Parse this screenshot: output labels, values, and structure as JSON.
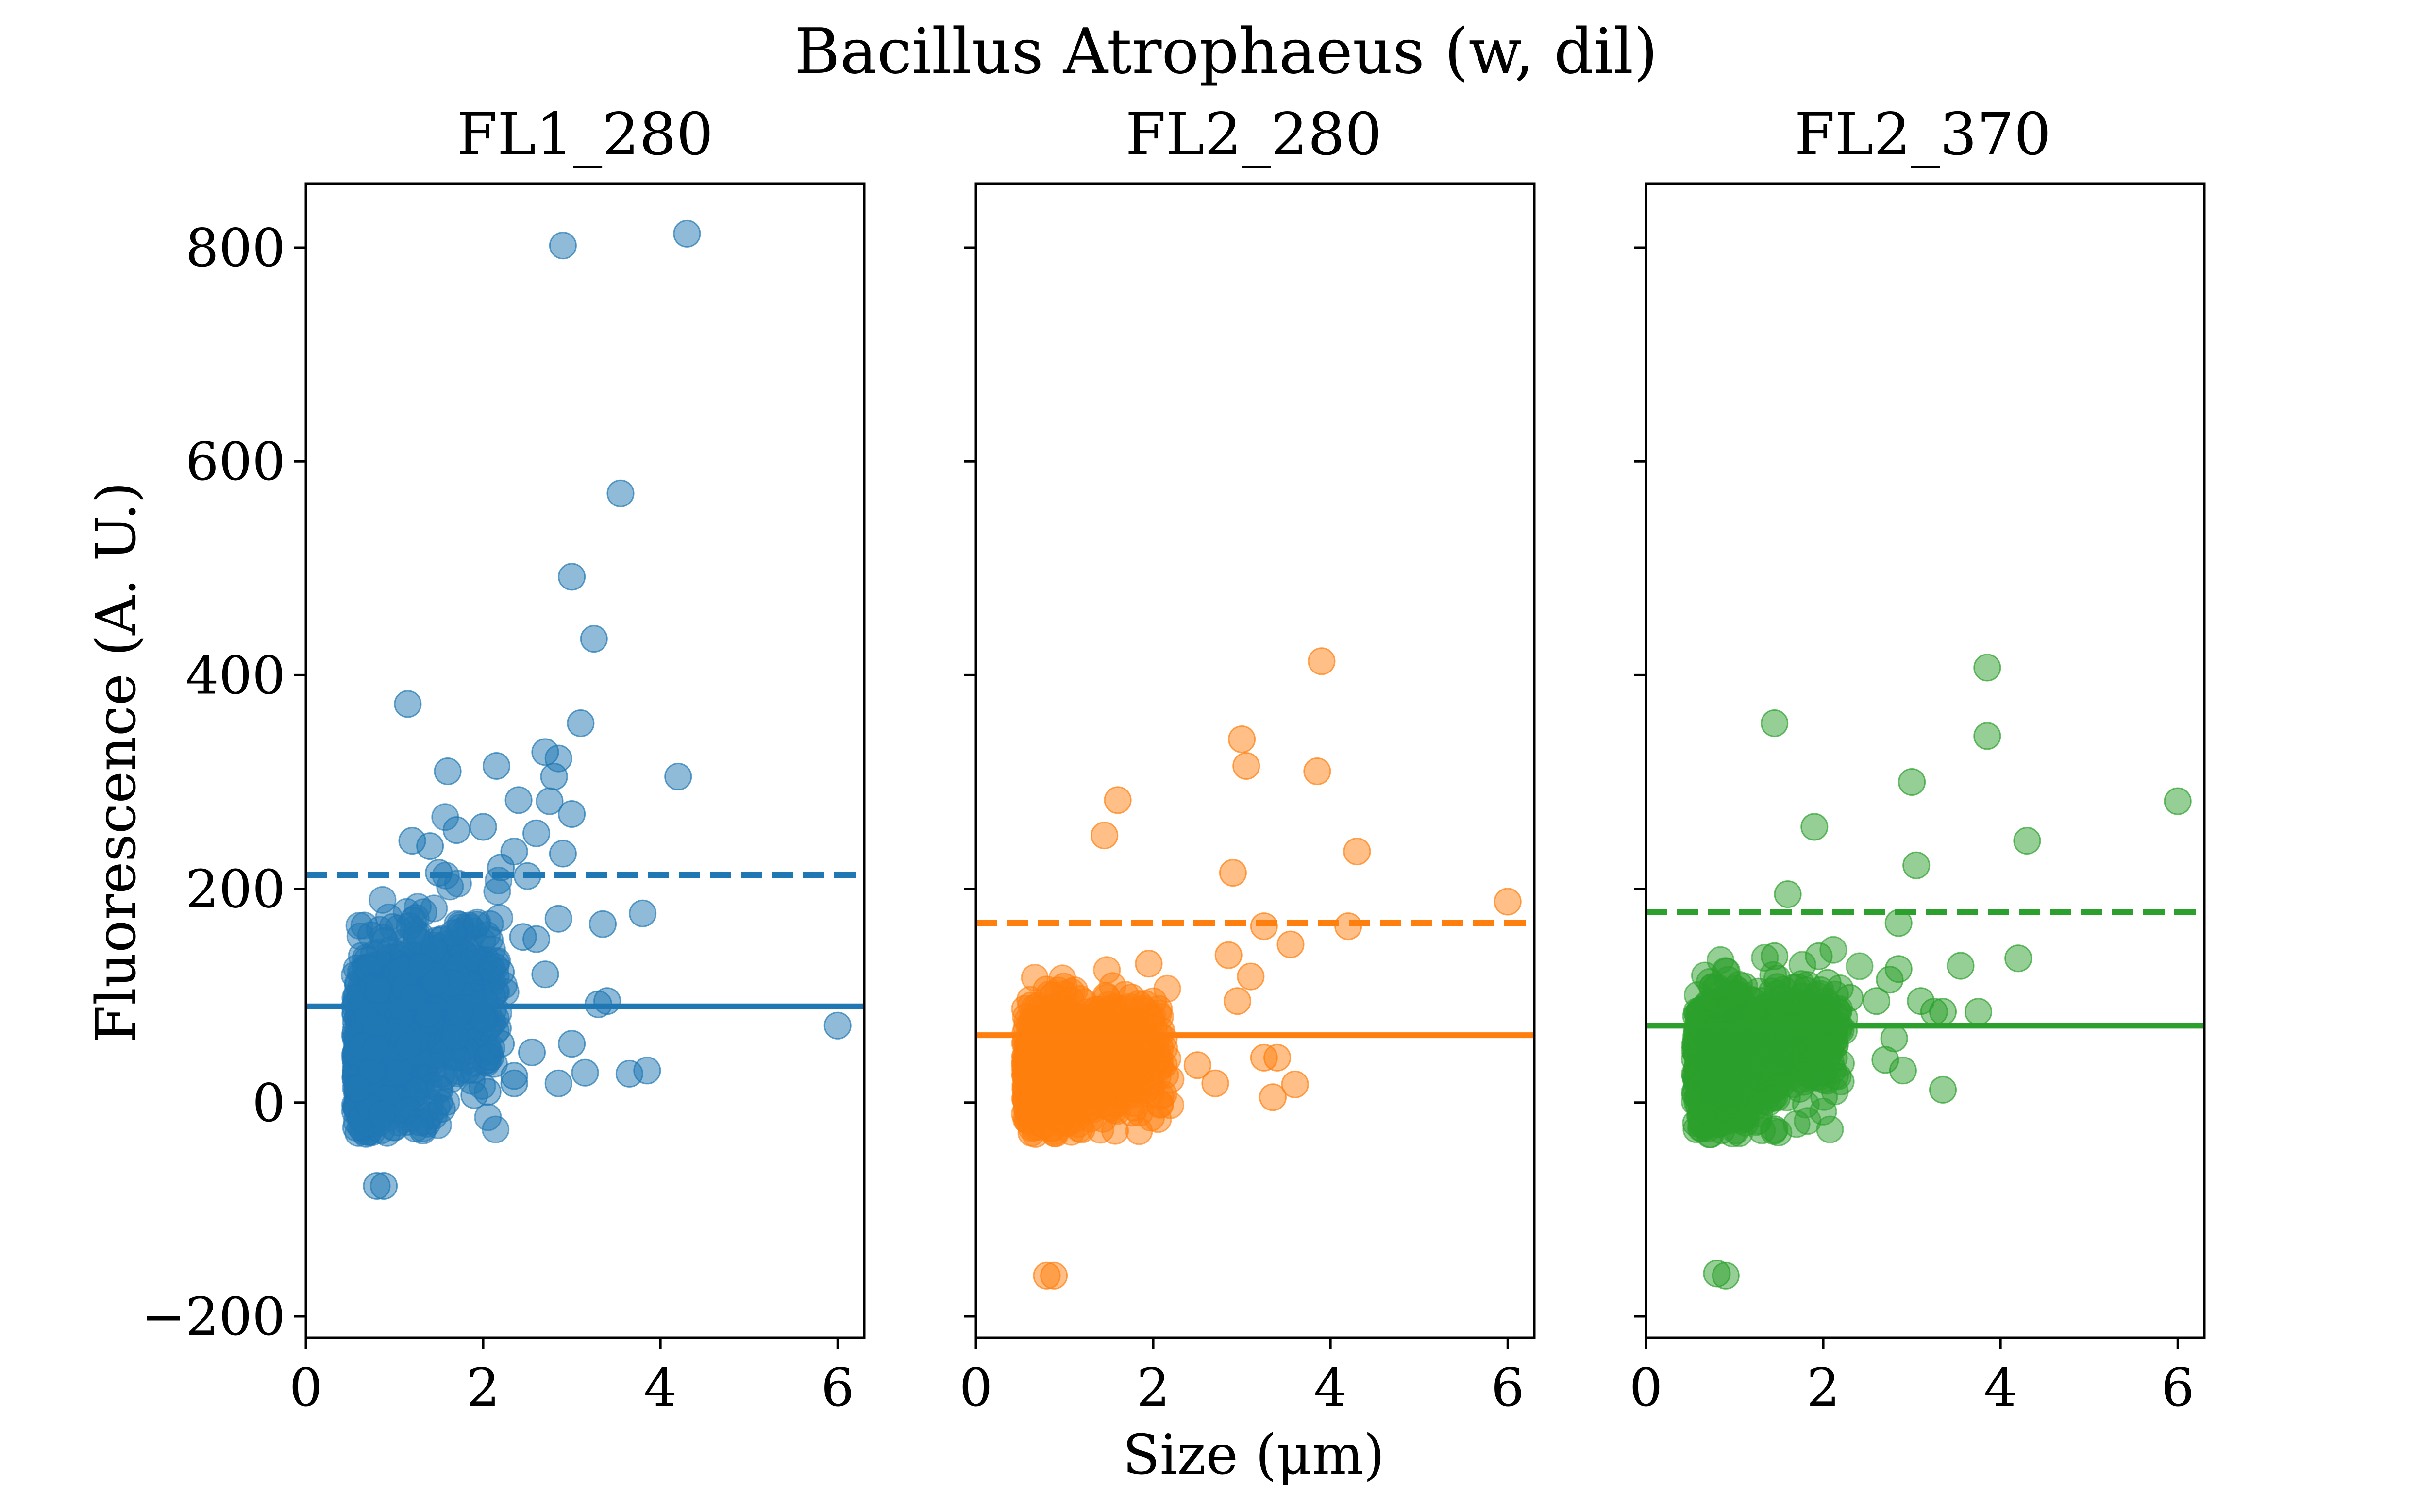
{
  "chart_data": {
    "type": "scatter",
    "title": "Bacillus Atrophaeus (w, dil)",
    "xlabel": "Size (μm)",
    "ylabel": "Fluorescence (A. U.)",
    "xlim": [
      0,
      6.3
    ],
    "ylim": [
      -220,
      860
    ],
    "x_ticks": [
      0,
      2,
      4,
      6
    ],
    "y_ticks": [
      -200,
      0,
      200,
      400,
      600,
      800
    ],
    "y_tick_labels": [
      "−200",
      "0",
      "200",
      "400",
      "600",
      "800"
    ],
    "grid": false,
    "legend": "none",
    "sharey": true,
    "panels": [
      {
        "title": "FL1_280",
        "color": "#1f77b4",
        "mean": 90,
        "threshold": 213,
        "outliers": [
          [
            2.9,
            802
          ],
          [
            4.3,
            813
          ],
          [
            3.55,
            570
          ],
          [
            3.0,
            492
          ],
          [
            3.25,
            434
          ],
          [
            1.15,
            373
          ],
          [
            3.1,
            355
          ],
          [
            2.7,
            328
          ],
          [
            2.85,
            322
          ],
          [
            1.6,
            310
          ],
          [
            2.15,
            315
          ],
          [
            2.8,
            305
          ],
          [
            4.2,
            305
          ],
          [
            2.4,
            283
          ],
          [
            2.75,
            282
          ],
          [
            3.0,
            270
          ],
          [
            2.6,
            252
          ],
          [
            1.7,
            255
          ],
          [
            2.0,
            258
          ],
          [
            1.2,
            245
          ],
          [
            1.4,
            240
          ],
          [
            2.35,
            235
          ],
          [
            2.9,
            233
          ],
          [
            2.2,
            220
          ],
          [
            1.5,
            215
          ],
          [
            2.5,
            212
          ],
          [
            2.85,
            172
          ],
          [
            3.8,
            177
          ],
          [
            3.35,
            167
          ],
          [
            2.45,
            155
          ],
          [
            2.6,
            153
          ],
          [
            2.2,
            122
          ],
          [
            2.7,
            120
          ],
          [
            3.3,
            92
          ],
          [
            3.4,
            95
          ],
          [
            6.0,
            72
          ],
          [
            3.0,
            55
          ],
          [
            2.55,
            47
          ],
          [
            2.2,
            55
          ],
          [
            2.35,
            18
          ],
          [
            2.85,
            18
          ],
          [
            3.15,
            28
          ],
          [
            3.65,
            27
          ],
          [
            3.85,
            30
          ],
          [
            2.05,
            10
          ],
          [
            1.9,
            7
          ],
          [
            2.35,
            25
          ],
          [
            0.8,
            -78
          ],
          [
            0.88,
            -78
          ]
        ]
      },
      {
        "title": "FL2_280",
        "color": "#ff7f0e",
        "mean": 63,
        "threshold": 168,
        "outliers": [
          [
            3.9,
            413
          ],
          [
            3.0,
            340
          ],
          [
            3.05,
            315
          ],
          [
            3.85,
            310
          ],
          [
            1.6,
            283
          ],
          [
            1.45,
            250
          ],
          [
            4.3,
            235
          ],
          [
            2.9,
            215
          ],
          [
            6.0,
            188
          ],
          [
            3.25,
            165
          ],
          [
            4.2,
            165
          ],
          [
            3.55,
            148
          ],
          [
            2.85,
            138
          ],
          [
            1.95,
            130
          ],
          [
            3.1,
            118
          ],
          [
            2.95,
            95
          ],
          [
            3.25,
            42
          ],
          [
            3.4,
            42
          ],
          [
            3.6,
            17
          ],
          [
            3.35,
            5
          ],
          [
            2.7,
            18
          ],
          [
            2.5,
            35
          ],
          [
            0.8,
            -162
          ],
          [
            0.88,
            -162
          ]
        ]
      },
      {
        "title": "FL2_370",
        "color": "#2ca02c",
        "mean": 72,
        "threshold": 178,
        "outliers": [
          [
            3.85,
            407
          ],
          [
            1.45,
            355
          ],
          [
            3.85,
            343
          ],
          [
            3.0,
            300
          ],
          [
            6.0,
            282
          ],
          [
            1.9,
            258
          ],
          [
            4.3,
            245
          ],
          [
            3.05,
            222
          ],
          [
            1.6,
            195
          ],
          [
            1.45,
            137
          ],
          [
            1.95,
            137
          ],
          [
            3.55,
            128
          ],
          [
            4.2,
            135
          ],
          [
            2.85,
            168
          ],
          [
            2.85,
            125
          ],
          [
            1.8,
            105
          ],
          [
            2.05,
            112
          ],
          [
            2.3,
            98
          ],
          [
            2.6,
            95
          ],
          [
            2.75,
            115
          ],
          [
            3.1,
            95
          ],
          [
            3.25,
            85
          ],
          [
            3.35,
            85
          ],
          [
            3.75,
            85
          ],
          [
            0.75,
            108
          ],
          [
            1.0,
            100
          ],
          [
            1.3,
            95
          ],
          [
            2.8,
            60
          ],
          [
            2.7,
            40
          ],
          [
            2.9,
            30
          ],
          [
            3.35,
            12
          ],
          [
            1.1,
            -15
          ],
          [
            1.45,
            -25
          ],
          [
            0.8,
            -160
          ],
          [
            0.9,
            -162
          ]
        ]
      }
    ]
  }
}
